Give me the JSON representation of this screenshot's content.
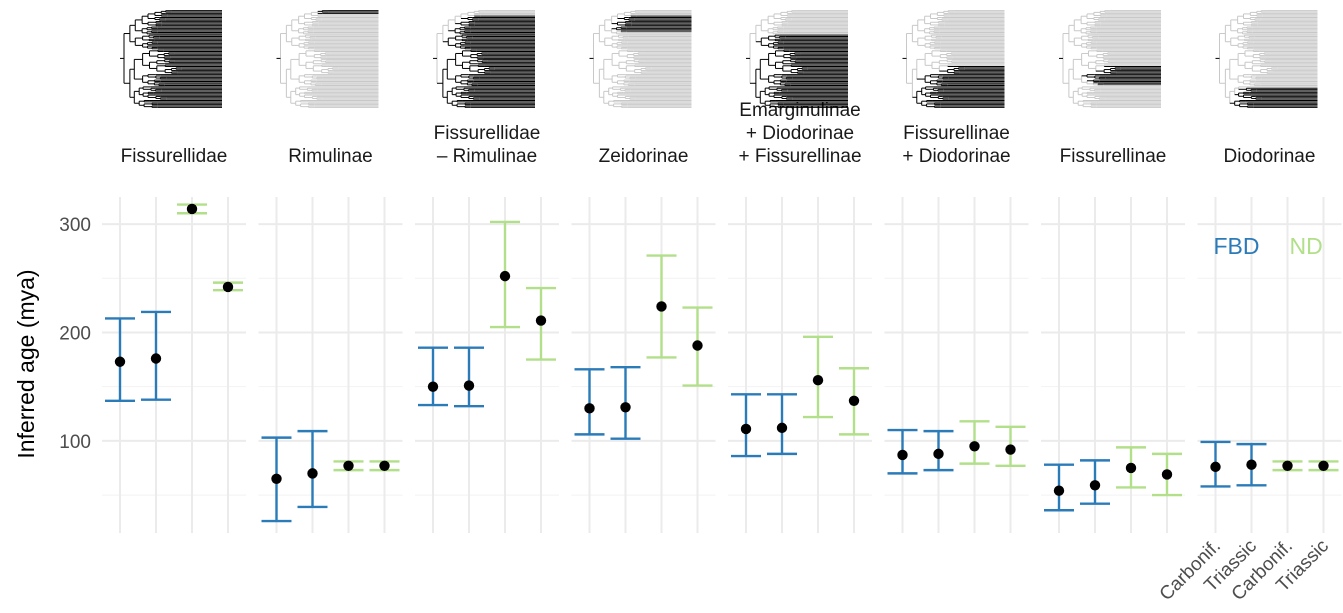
{
  "chart_data": {
    "type": "errorbar",
    "ylabel": "Inferred age (mya)",
    "ylim": [
      15,
      325
    ],
    "y_ticks": [
      100,
      200,
      300
    ],
    "y_tick_labels": [
      "100",
      "200",
      "300"
    ],
    "x_categories": [
      "Carbonif.",
      "Triassic",
      "Carbonif.",
      "Triassic"
    ],
    "grid": true,
    "legend": {
      "placement": "inside-top-right-last-panel",
      "entries": [
        {
          "name": "FBD",
          "color": "#2b7bb9"
        },
        {
          "name": "ND",
          "color": "#b2df8a"
        }
      ]
    },
    "colors": {
      "FBD": "#2b7bb9",
      "ND": "#b2df8a",
      "point": "#000000",
      "tree_black": "#000000",
      "tree_gray": "#c8c8c8"
    },
    "panels": [
      {
        "label_lines": [
          "Fissurellidae"
        ],
        "highlight": [
          0.0,
          1.0
        ],
        "bars": [
          {
            "model": "FBD",
            "x": "Carbonif.",
            "mid": 173,
            "low": 137,
            "high": 213
          },
          {
            "model": "FBD",
            "x": "Triassic",
            "mid": 176,
            "low": 138,
            "high": 219
          },
          {
            "model": "ND",
            "x": "Carbonif.",
            "mid": 314,
            "low": 310,
            "high": 318
          },
          {
            "model": "ND",
            "x": "Triassic",
            "mid": 242,
            "low": 239,
            "high": 246
          }
        ]
      },
      {
        "label_lines": [
          "Rimulinae"
        ],
        "highlight": [
          0.0,
          0.03
        ],
        "bars": [
          {
            "model": "FBD",
            "x": "Carbonif.",
            "mid": 65,
            "low": 26,
            "high": 103
          },
          {
            "model": "FBD",
            "x": "Triassic",
            "mid": 70,
            "low": 39,
            "high": 109
          },
          {
            "model": "ND",
            "x": "Carbonif.",
            "mid": 77,
            "low": 73,
            "high": 81
          },
          {
            "model": "ND",
            "x": "Triassic",
            "mid": 77,
            "low": 73,
            "high": 81
          }
        ]
      },
      {
        "label_lines": [
          "Fissurellidae",
          "– Rimulinae"
        ],
        "highlight": [
          0.05,
          1.0
        ],
        "bars": [
          {
            "model": "FBD",
            "x": "Carbonif.",
            "mid": 150,
            "low": 133,
            "high": 186
          },
          {
            "model": "FBD",
            "x": "Triassic",
            "mid": 151,
            "low": 132,
            "high": 186
          },
          {
            "model": "ND",
            "x": "Carbonif.",
            "mid": 252,
            "low": 205,
            "high": 302
          },
          {
            "model": "ND",
            "x": "Triassic",
            "mid": 211,
            "low": 175,
            "high": 241
          }
        ]
      },
      {
        "label_lines": [
          "Zeidorinae"
        ],
        "highlight": [
          0.05,
          0.22
        ],
        "bars": [
          {
            "model": "FBD",
            "x": "Carbonif.",
            "mid": 130,
            "low": 106,
            "high": 166
          },
          {
            "model": "FBD",
            "x": "Triassic",
            "mid": 131,
            "low": 102,
            "high": 168
          },
          {
            "model": "ND",
            "x": "Carbonif.",
            "mid": 224,
            "low": 177,
            "high": 271
          },
          {
            "model": "ND",
            "x": "Triassic",
            "mid": 188,
            "low": 151,
            "high": 223
          }
        ]
      },
      {
        "label_lines": [
          "Emarginulinae",
          "+ Diodorinae",
          "+ Fissurellinae"
        ],
        "highlight": [
          0.24,
          1.0
        ],
        "bars": [
          {
            "model": "FBD",
            "x": "Carbonif.",
            "mid": 111,
            "low": 86,
            "high": 143
          },
          {
            "model": "FBD",
            "x": "Triassic",
            "mid": 112,
            "low": 88,
            "high": 143
          },
          {
            "model": "ND",
            "x": "Carbonif.",
            "mid": 156,
            "low": 122,
            "high": 196
          },
          {
            "model": "ND",
            "x": "Triassic",
            "mid": 137,
            "low": 106,
            "high": 167
          }
        ]
      },
      {
        "label_lines": [
          "Fissurellinae",
          "+ Diodorinae"
        ],
        "highlight": [
          0.56,
          1.0
        ],
        "bars": [
          {
            "model": "FBD",
            "x": "Carbonif.",
            "mid": 87,
            "low": 70,
            "high": 110
          },
          {
            "model": "FBD",
            "x": "Triassic",
            "mid": 88,
            "low": 73,
            "high": 109
          },
          {
            "model": "ND",
            "x": "Carbonif.",
            "mid": 95,
            "low": 79,
            "high": 118
          },
          {
            "model": "ND",
            "x": "Triassic",
            "mid": 92,
            "low": 77,
            "high": 113
          }
        ]
      },
      {
        "label_lines": [
          "Fissurellinae"
        ],
        "highlight": [
          0.56,
          0.76
        ],
        "bars": [
          {
            "model": "FBD",
            "x": "Carbonif.",
            "mid": 54,
            "low": 36,
            "high": 78
          },
          {
            "model": "FBD",
            "x": "Triassic",
            "mid": 59,
            "low": 42,
            "high": 82
          },
          {
            "model": "ND",
            "x": "Carbonif.",
            "mid": 75,
            "low": 57,
            "high": 94
          },
          {
            "model": "ND",
            "x": "Triassic",
            "mid": 69,
            "low": 50,
            "high": 88
          }
        ]
      },
      {
        "label_lines": [
          "Diodorinae"
        ],
        "highlight": [
          0.78,
          1.0
        ],
        "bars": [
          {
            "model": "FBD",
            "x": "Carbonif.",
            "mid": 76,
            "low": 58,
            "high": 99
          },
          {
            "model": "FBD",
            "x": "Triassic",
            "mid": 78,
            "low": 59,
            "high": 97
          },
          {
            "model": "ND",
            "x": "Carbonif.",
            "mid": 77,
            "low": 73,
            "high": 81
          },
          {
            "model": "ND",
            "x": "Triassic",
            "mid": 77,
            "low": 73,
            "high": 81
          }
        ]
      }
    ]
  }
}
